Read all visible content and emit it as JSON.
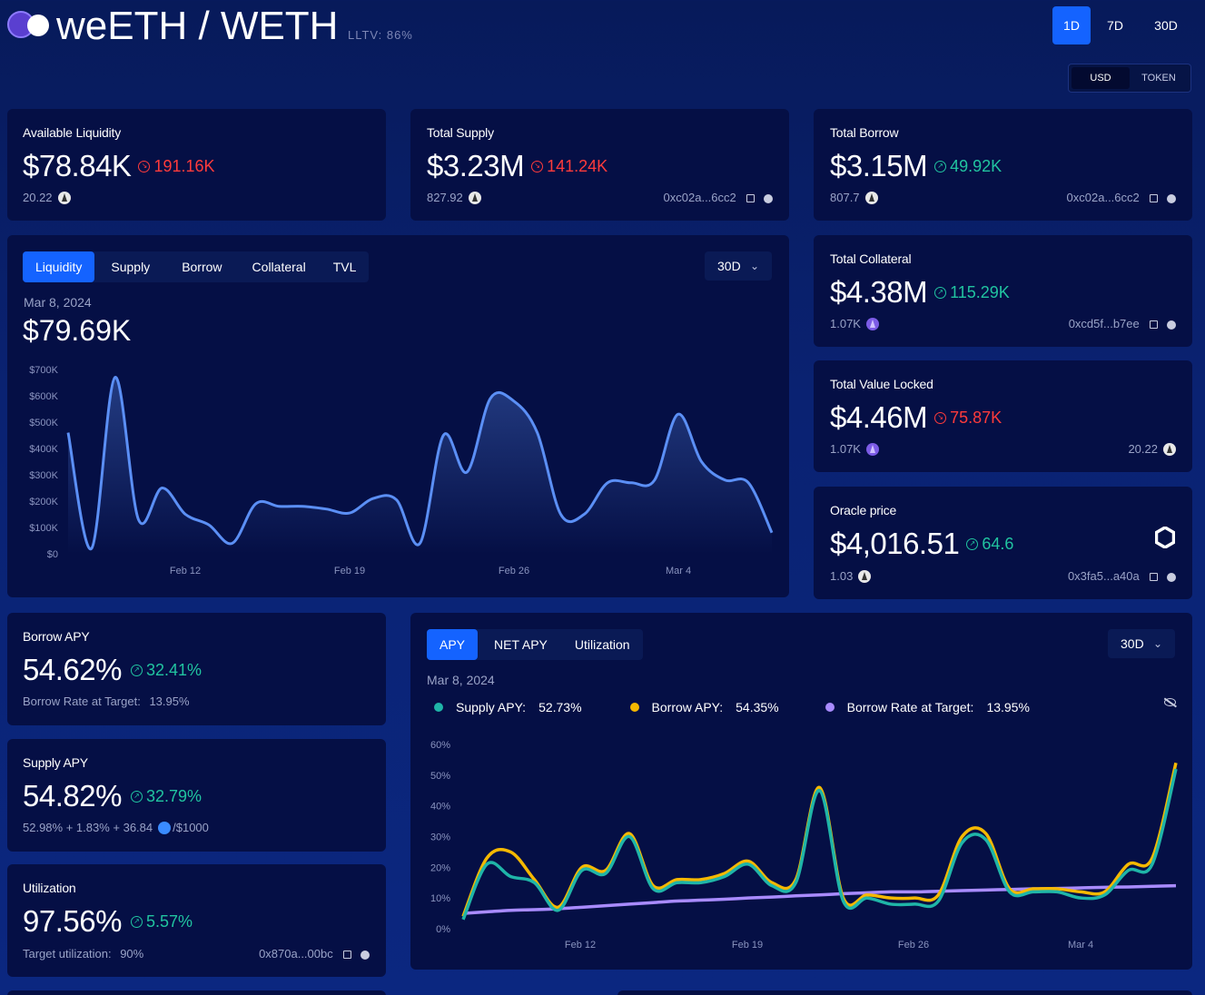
{
  "header": {
    "title": "weETH / WETH",
    "lltv": "LLTV: 86%",
    "time_tabs": [
      "1D",
      "7D",
      "30D"
    ],
    "active_time_tab": "1D",
    "unit_toggle": [
      "USD",
      "TOKEN"
    ],
    "active_unit": "USD"
  },
  "cards": {
    "available_liquidity": {
      "label": "Available Liquidity",
      "value": "$78.84K",
      "change": "191.16K",
      "sub": "20.22"
    },
    "total_supply": {
      "label": "Total Supply",
      "value": "$3.23M",
      "change": "141.24K",
      "sub": "827.92",
      "address": "0xc02a...6cc2"
    },
    "total_borrow": {
      "label": "Total Borrow",
      "value": "$3.15M",
      "change": "49.92K",
      "sub": "807.7",
      "address": "0xc02a...6cc2"
    },
    "total_collateral": {
      "label": "Total Collateral",
      "value": "$4.38M",
      "change": "115.29K",
      "sub": "1.07K",
      "address": "0xcd5f...b7ee"
    },
    "total_value_locked": {
      "label": "Total Value Locked",
      "value": "$4.46M",
      "change": "75.87K",
      "sub": "1.07K",
      "sub_right": "20.22"
    },
    "oracle_price": {
      "label": "Oracle price",
      "value": "$4,016.51",
      "change": "64.6",
      "sub": "1.03",
      "address": "0x3fa5...a40a"
    },
    "borrow_apy": {
      "label": "Borrow APY",
      "value": "54.62%",
      "change": "32.41%",
      "sub_label": "Borrow Rate at Target:",
      "sub_value": "13.95%"
    },
    "supply_apy": {
      "label": "Supply APY",
      "value": "54.82%",
      "change": "32.79%",
      "sub_a": "52.98% + 1.83% + 36.84",
      "sub_b": "/$1000"
    },
    "utilization": {
      "label": "Utilization",
      "value": "97.56%",
      "change": "5.57%",
      "sub_label": "Target utilization:",
      "sub_value": "90%",
      "address": "0x870a...00bc"
    }
  },
  "liquidity_panel": {
    "tabs": [
      "Liquidity",
      "Supply",
      "Borrow",
      "Collateral",
      "TVL"
    ],
    "active_tab": "Liquidity",
    "range": "30D",
    "date": "Mar 8, 2024",
    "value": "$79.69K"
  },
  "apy_panel": {
    "tabs": [
      "APY",
      "NET APY",
      "Utilization"
    ],
    "active_tab": "APY",
    "range": "30D",
    "date": "Mar 8, 2024",
    "legend": [
      {
        "name": "Supply APY:",
        "value": "52.73%",
        "color": "#1fb5a8"
      },
      {
        "name": "Borrow APY:",
        "value": "54.35%",
        "color": "#f5b800"
      },
      {
        "name": "Borrow Rate at Target:",
        "value": "13.95%",
        "color": "#a98bff"
      }
    ]
  },
  "chart_data": [
    {
      "type": "area",
      "x_ticks": [
        "Feb 12",
        "Feb 19",
        "Feb 26",
        "Mar 4"
      ],
      "y_ticks": [
        "$0",
        "$100K",
        "$200K",
        "$300K",
        "$400K",
        "$500K",
        "$600K",
        "$700K"
      ],
      "ylim": [
        0,
        700000
      ],
      "color": "#5b8ff5",
      "series": [
        {
          "values": [
            460000,
            20000,
            670000,
            130000,
            250000,
            150000,
            110000,
            40000,
            190000,
            180000,
            180000,
            170000,
            155000,
            210000,
            205000,
            40000,
            450000,
            310000,
            590000,
            580000,
            460000,
            150000,
            150000,
            270000,
            270000,
            280000,
            530000,
            350000,
            280000,
            270000,
            80000
          ]
        }
      ]
    },
    {
      "type": "line",
      "x_ticks": [
        "Feb 12",
        "Feb 19",
        "Feb 26",
        "Mar 4"
      ],
      "y_ticks": [
        "0%",
        "10%",
        "20%",
        "30%",
        "40%",
        "50%",
        "60%"
      ],
      "ylim": [
        0,
        60
      ],
      "series": [
        {
          "name": "Supply APY",
          "color": "#1fb5a8",
          "values": [
            3,
            21,
            17,
            15,
            6,
            19,
            18,
            30,
            13,
            15,
            15,
            17,
            21,
            14,
            15,
            45,
            9,
            10,
            8,
            8,
            9,
            28,
            29,
            12,
            12,
            12,
            10,
            11,
            19,
            21,
            52
          ]
        },
        {
          "name": "Borrow APY",
          "color": "#f5b800",
          "values": [
            4,
            23,
            25,
            16,
            7,
            20,
            19,
            31,
            14,
            16,
            16,
            18,
            22,
            15,
            16,
            46,
            10,
            11,
            10,
            10,
            11,
            30,
            31,
            13,
            13,
            13,
            12,
            12,
            21,
            23,
            54
          ]
        },
        {
          "name": "Borrow Rate at Target",
          "color": "#a98bff",
          "values": [
            5,
            5.5,
            6,
            6.2,
            6.5,
            7,
            7.5,
            8,
            8.5,
            9,
            9.3,
            9.6,
            10,
            10.3,
            10.7,
            11,
            11.4,
            11.7,
            12,
            12,
            12.2,
            12.4,
            12.6,
            12.8,
            13,
            13.1,
            13.3,
            13.5,
            13.6,
            13.8,
            14
          ]
        }
      ]
    }
  ]
}
